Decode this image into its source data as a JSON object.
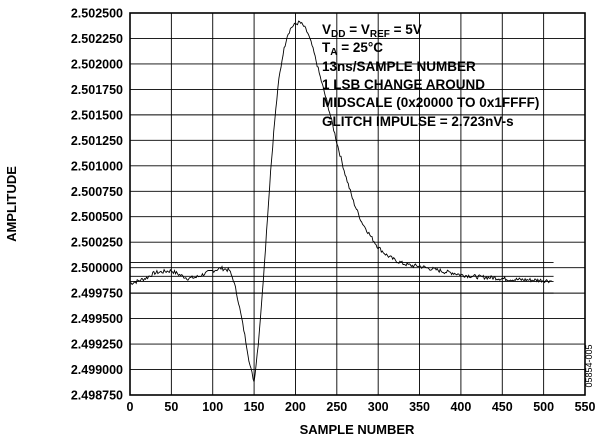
{
  "chart_data": {
    "type": "line",
    "xlabel": "SAMPLE NUMBER",
    "ylabel": "AMPLITUDE",
    "xlim": [
      0,
      550
    ],
    "ylim": [
      2.49875,
      2.5025
    ],
    "x_ticks": [
      "0",
      "50",
      "100",
      "150",
      "200",
      "250",
      "300",
      "350",
      "400",
      "450",
      "500",
      "550"
    ],
    "y_ticks": [
      "2.498750",
      "2.499000",
      "2.499250",
      "2.499500",
      "2.499750",
      "2.500000",
      "2.500250",
      "2.500500",
      "2.500750",
      "2.501000",
      "2.501250",
      "2.501500",
      "2.501750",
      "2.502000",
      "2.502250",
      "2.502500"
    ],
    "grid": true,
    "legend": "none",
    "annotations": [
      {
        "main": "V",
        "sub": "DD",
        "main2": " = V",
        "sub2": "REF",
        "main3": " = 5V"
      },
      {
        "main": "T",
        "sub": "A",
        "main2": " = 25°C"
      },
      {
        "main": "13ns/SAMPLE NUMBER"
      },
      {
        "main": "1 LSB CHANGE AROUND"
      },
      {
        "main": "MIDSCALE (0x20000 TO 0x1FFFF)"
      },
      {
        "main": "GLITCH IMPULSE = 2.723nV-s"
      }
    ],
    "series": [
      {
        "color": "#000000",
        "x": [
          0,
          10,
          20,
          30,
          40,
          50,
          60,
          70,
          80,
          90,
          100,
          110,
          120,
          125,
          130,
          135,
          140,
          145,
          150,
          155,
          160,
          165,
          170,
          175,
          180,
          185,
          190,
          195,
          200,
          205,
          210,
          215,
          220,
          225,
          230,
          240,
          250,
          260,
          270,
          280,
          290,
          300,
          310,
          320,
          330,
          340,
          350,
          360,
          370,
          380,
          390,
          400,
          420,
          440,
          460,
          480,
          500,
          510
        ],
        "y": [
          2.499845,
          2.49987,
          2.4999,
          2.49995,
          2.49996,
          2.49997,
          2.49993,
          2.499895,
          2.499905,
          2.49994,
          2.49997,
          2.499995,
          2.499975,
          2.49988,
          2.49971,
          2.4995,
          2.49928,
          2.49904,
          2.49888,
          2.49925,
          2.49975,
          2.50035,
          2.50095,
          2.50145,
          2.50185,
          2.5021,
          2.50228,
          2.50236,
          2.50239,
          2.50241,
          2.50237,
          2.5023,
          2.50218,
          2.50203,
          2.50187,
          2.50157,
          2.50123,
          2.50092,
          2.50065,
          2.50045,
          2.50032,
          2.5002,
          2.500125,
          2.500075,
          2.50004,
          2.50002,
          2.500015,
          2.499995,
          2.49998,
          2.49996,
          2.49995,
          2.49993,
          2.49991,
          2.4999,
          2.499885,
          2.49988,
          2.499875,
          2.49987
        ]
      }
    ],
    "reference_lines": [
      2.50005,
      2.499915,
      2.499865,
      2.49975
    ]
  },
  "figure_id": "05854-005"
}
